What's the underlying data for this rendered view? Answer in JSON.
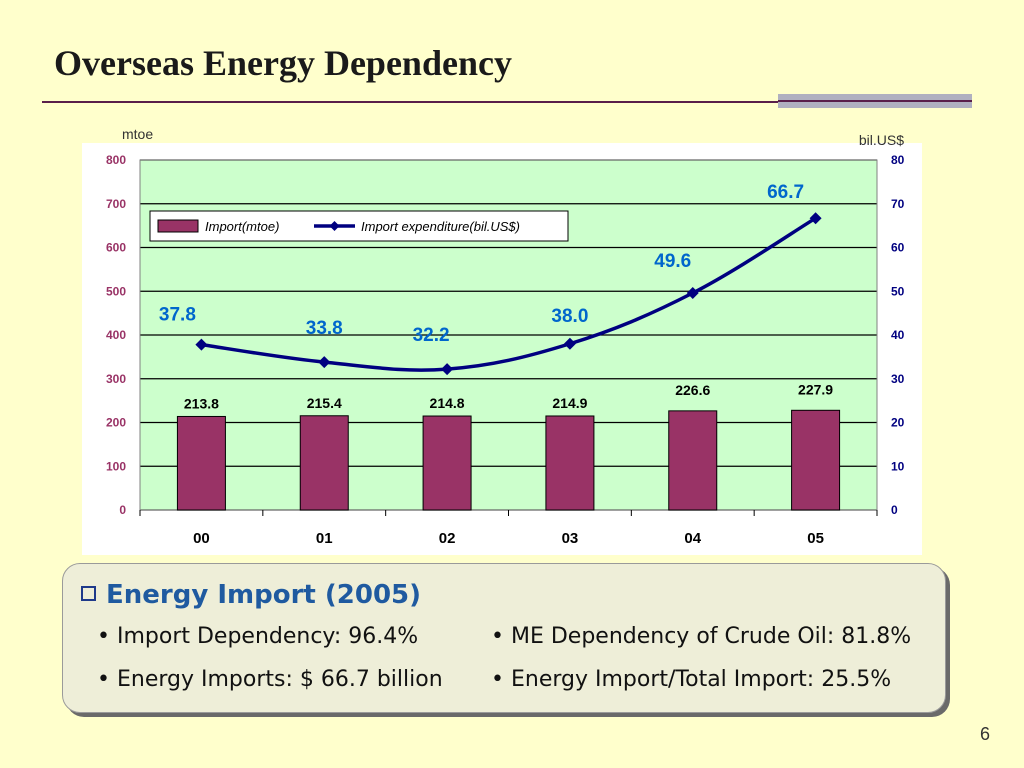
{
  "slide": {
    "title": "Overseas Energy Dependency",
    "page_number": "6"
  },
  "chart_data": {
    "type": "bar",
    "categories": [
      "00",
      "01",
      "02",
      "03",
      "04",
      "05"
    ],
    "series": [
      {
        "name": "Import(mtoe)",
        "type": "bar",
        "axis": "left",
        "color": "#993366",
        "values": [
          213.8,
          215.4,
          214.8,
          214.9,
          226.6,
          227.9
        ],
        "labels": [
          "213.8",
          "215.4",
          "214.8",
          "214.9",
          "226.6",
          "227.9"
        ]
      },
      {
        "name": "Import expenditure(bil.US$)",
        "type": "line",
        "axis": "right",
        "color": "#000080",
        "values": [
          37.8,
          33.8,
          32.2,
          38.0,
          49.6,
          66.7
        ],
        "labels": [
          "37.8",
          "33.8",
          "32.2",
          "38.0",
          "49.6",
          "66.7"
        ]
      }
    ],
    "ylabel_left": "mtoe",
    "ylabel_right": "bil.US$",
    "ylim_left": [
      0,
      800
    ],
    "ylim_right": [
      0,
      80
    ],
    "yticks_left": [
      "0",
      "100",
      "200",
      "300",
      "400",
      "500",
      "600",
      "700",
      "800"
    ],
    "yticks_right": [
      "0",
      "10",
      "20",
      "30",
      "40",
      "50",
      "60",
      "70",
      "80"
    ],
    "grid": true,
    "legend": "top-left",
    "colors": {
      "plot_bg": "#ccffcc",
      "left_axis_text": "#993366",
      "right_axis_text": "#000080",
      "line_label": "#0066cc"
    }
  },
  "summary": {
    "heading": "Energy Import (2005)",
    "items": [
      "• Import Dependency: 96.4%",
      "• ME Dependency of Crude Oil: 81.8%",
      "• Energy Imports: $ 66.7 billion",
      "• Energy Import/Total Import: 25.5%"
    ]
  }
}
